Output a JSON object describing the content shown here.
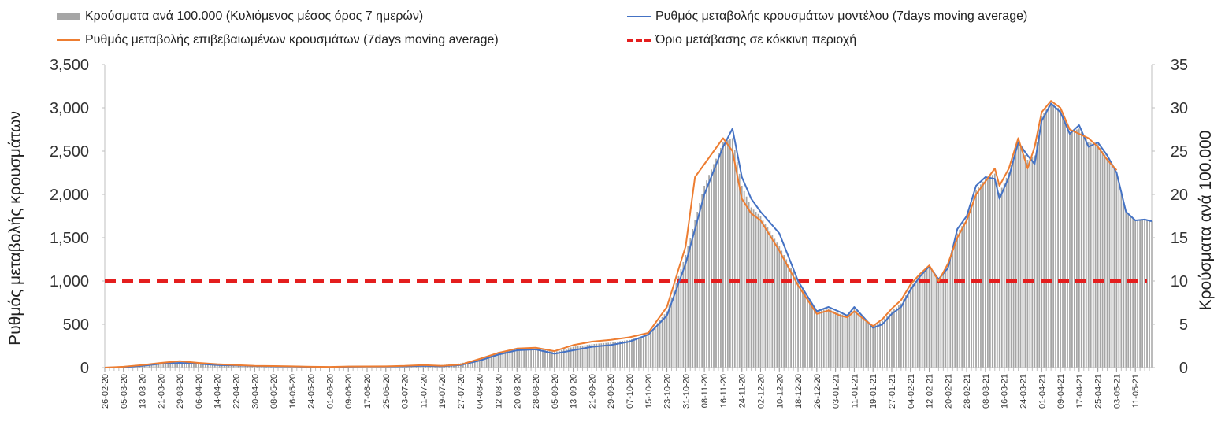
{
  "chart_data": {
    "type": "bar+line",
    "legend": {
      "bars": "Κρούσματα ανά 100.000 (Κυλιόμενος μέσος όρος 7 ημερών)",
      "model": "Ρυθμός μεταβολής κρουσμάτων μοντέλου (7days moving average)",
      "confirmed": "Ρυθμός μεταβολής επιβεβαιωμένων κρουσμάτων (7days moving average)",
      "threshold": "Όριο μετάβασης σε κόκκινη περιοχή"
    },
    "ylabel_left": "Ρυθμός μεταβολής κρουσμάτων",
    "ylabel_right": "Κρούσματα ανά 100.000",
    "ylim_left": [
      0,
      3500
    ],
    "ylim_right": [
      0,
      35
    ],
    "yticks_left": [
      "0",
      "500",
      "1,000",
      "1,500",
      "2,000",
      "2,500",
      "3,000",
      "3,500"
    ],
    "yticks_right": [
      "0",
      "5",
      "10",
      "15",
      "20",
      "25",
      "30",
      "35"
    ],
    "x_start": "26-02-20",
    "x_end": "18-05-21",
    "x_tick_labels": [
      "26-02-20",
      "05-03-20",
      "13-03-20",
      "21-03-20",
      "29-03-20",
      "06-04-20",
      "14-04-20",
      "22-04-20",
      "30-04-20",
      "08-05-20",
      "16-05-20",
      "24-05-20",
      "01-06-20",
      "09-06-20",
      "17-06-20",
      "25-06-20",
      "03-07-20",
      "11-07-20",
      "19-07-20",
      "27-07-20",
      "04-08-20",
      "12-08-20",
      "20-08-20",
      "28-08-20",
      "05-09-20",
      "13-09-20",
      "21-09-20",
      "29-09-20",
      "07-10-20",
      "15-10-20",
      "23-10-20",
      "31-10-20",
      "08-11-20",
      "16-11-20",
      "24-11-20",
      "02-12-20",
      "10-12-20",
      "18-12-20",
      "26-12-20",
      "03-01-21",
      "11-01-21",
      "19-01-21",
      "27-01-21",
      "04-02-21",
      "12-02-21",
      "20-02-21",
      "28-02-21",
      "08-03-21",
      "16-03-21",
      "24-03-21",
      "01-04-21",
      "09-04-21",
      "17-04-21",
      "25-04-21",
      "03-05-21",
      "11-05-21"
    ],
    "threshold_value": 1000,
    "series": [
      {
        "name": "Ρυθμός μεταβολής κρουσμάτων μοντέλου (7days moving average)",
        "axis": "left",
        "points": [
          [
            "26-02-20",
            0
          ],
          [
            "05-03-20",
            5
          ],
          [
            "13-03-20",
            20
          ],
          [
            "21-03-20",
            45
          ],
          [
            "29-03-20",
            55
          ],
          [
            "06-04-20",
            45
          ],
          [
            "14-04-20",
            30
          ],
          [
            "22-04-20",
            25
          ],
          [
            "30-04-20",
            18
          ],
          [
            "08-05-20",
            15
          ],
          [
            "16-05-20",
            12
          ],
          [
            "24-05-20",
            8
          ],
          [
            "01-06-20",
            5
          ],
          [
            "09-06-20",
            10
          ],
          [
            "17-06-20",
            12
          ],
          [
            "25-06-20",
            12
          ],
          [
            "03-07-20",
            15
          ],
          [
            "11-07-20",
            20
          ],
          [
            "19-07-20",
            15
          ],
          [
            "27-07-20",
            30
          ],
          [
            "04-08-20",
            80
          ],
          [
            "12-08-20",
            150
          ],
          [
            "20-08-20",
            200
          ],
          [
            "28-08-20",
            210
          ],
          [
            "05-09-20",
            160
          ],
          [
            "13-09-20",
            200
          ],
          [
            "21-09-20",
            240
          ],
          [
            "29-09-20",
            260
          ],
          [
            "07-10-20",
            300
          ],
          [
            "15-10-20",
            380
          ],
          [
            "23-10-20",
            600
          ],
          [
            "31-10-20",
            1200
          ],
          [
            "08-11-20",
            2000
          ],
          [
            "16-11-20",
            2550
          ],
          [
            "20-11-20",
            2760
          ],
          [
            "24-11-20",
            2200
          ],
          [
            "28-11-20",
            1950
          ],
          [
            "02-12-20",
            1800
          ],
          [
            "10-12-20",
            1550
          ],
          [
            "18-12-20",
            1000
          ],
          [
            "26-12-20",
            650
          ],
          [
            "31-12-20",
            700
          ],
          [
            "05-01-21",
            640
          ],
          [
            "08-01-21",
            600
          ],
          [
            "11-01-21",
            700
          ],
          [
            "15-01-21",
            580
          ],
          [
            "19-01-21",
            460
          ],
          [
            "23-01-21",
            500
          ],
          [
            "27-01-21",
            620
          ],
          [
            "31-01-21",
            700
          ],
          [
            "04-02-21",
            900
          ],
          [
            "08-02-21",
            1050
          ],
          [
            "12-02-21",
            1170
          ],
          [
            "16-02-21",
            1020
          ],
          [
            "20-02-21",
            1150
          ],
          [
            "24-02-21",
            1600
          ],
          [
            "28-02-21",
            1750
          ],
          [
            "04-03-21",
            2100
          ],
          [
            "08-03-21",
            2200
          ],
          [
            "12-03-21",
            2180
          ],
          [
            "14-03-21",
            1950
          ],
          [
            "18-03-21",
            2200
          ],
          [
            "22-03-21",
            2600
          ],
          [
            "26-03-21",
            2450
          ],
          [
            "29-03-21",
            2350
          ],
          [
            "01-04-21",
            2850
          ],
          [
            "05-04-21",
            3050
          ],
          [
            "09-04-21",
            2950
          ],
          [
            "13-04-21",
            2700
          ],
          [
            "17-04-21",
            2800
          ],
          [
            "21-04-21",
            2550
          ],
          [
            "25-04-21",
            2600
          ],
          [
            "29-04-21",
            2450
          ],
          [
            "03-05-21",
            2250
          ],
          [
            "07-05-21",
            1800
          ],
          [
            "11-05-21",
            1700
          ],
          [
            "15-05-21",
            1710
          ],
          [
            "18-05-21",
            1690
          ]
        ]
      },
      {
        "name": "Ρυθμός μεταβολής επιβεβαιωμένων κρουσμάτων (7days moving average)",
        "axis": "left",
        "points": [
          [
            "26-02-20",
            0
          ],
          [
            "05-03-20",
            10
          ],
          [
            "13-03-20",
            30
          ],
          [
            "21-03-20",
            55
          ],
          [
            "29-03-20",
            75
          ],
          [
            "06-04-20",
            55
          ],
          [
            "14-04-20",
            40
          ],
          [
            "22-04-20",
            30
          ],
          [
            "30-04-20",
            20
          ],
          [
            "08-05-20",
            18
          ],
          [
            "16-05-20",
            15
          ],
          [
            "24-05-20",
            10
          ],
          [
            "01-06-20",
            8
          ],
          [
            "09-06-20",
            12
          ],
          [
            "17-06-20",
            14
          ],
          [
            "25-06-20",
            15
          ],
          [
            "03-07-20",
            20
          ],
          [
            "11-07-20",
            30
          ],
          [
            "19-07-20",
            20
          ],
          [
            "27-07-20",
            35
          ],
          [
            "04-08-20",
            100
          ],
          [
            "12-08-20",
            170
          ],
          [
            "20-08-20",
            220
          ],
          [
            "28-08-20",
            230
          ],
          [
            "05-09-20",
            190
          ],
          [
            "13-09-20",
            260
          ],
          [
            "21-09-20",
            300
          ],
          [
            "29-09-20",
            320
          ],
          [
            "07-10-20",
            350
          ],
          [
            "15-10-20",
            400
          ],
          [
            "23-10-20",
            700
          ],
          [
            "31-10-20",
            1400
          ],
          [
            "04-11-20",
            2200
          ],
          [
            "08-11-20",
            2350
          ],
          [
            "16-11-20",
            2650
          ],
          [
            "20-11-20",
            2500
          ],
          [
            "24-11-20",
            1950
          ],
          [
            "28-11-20",
            1780
          ],
          [
            "02-12-20",
            1700
          ],
          [
            "10-12-20",
            1350
          ],
          [
            "18-12-20",
            950
          ],
          [
            "26-12-20",
            620
          ],
          [
            "31-12-20",
            660
          ],
          [
            "05-01-21",
            600
          ],
          [
            "08-01-21",
            580
          ],
          [
            "11-01-21",
            650
          ],
          [
            "15-01-21",
            560
          ],
          [
            "19-01-21",
            480
          ],
          [
            "23-01-21",
            560
          ],
          [
            "27-01-21",
            680
          ],
          [
            "31-01-21",
            780
          ],
          [
            "04-02-21",
            960
          ],
          [
            "08-02-21",
            1080
          ],
          [
            "12-02-21",
            1180
          ],
          [
            "16-02-21",
            1000
          ],
          [
            "20-02-21",
            1200
          ],
          [
            "24-02-21",
            1500
          ],
          [
            "28-02-21",
            1700
          ],
          [
            "04-03-21",
            2000
          ],
          [
            "08-03-21",
            2150
          ],
          [
            "12-03-21",
            2300
          ],
          [
            "14-03-21",
            2100
          ],
          [
            "18-03-21",
            2300
          ],
          [
            "22-03-21",
            2650
          ],
          [
            "26-03-21",
            2300
          ],
          [
            "29-03-21",
            2550
          ],
          [
            "01-04-21",
            2950
          ],
          [
            "05-04-21",
            3080
          ],
          [
            "09-04-21",
            3000
          ],
          [
            "13-04-21",
            2750
          ],
          [
            "17-04-21",
            2700
          ],
          [
            "21-04-21",
            2650
          ],
          [
            "25-04-21",
            2550
          ],
          [
            "29-04-21",
            2400
          ],
          [
            "03-05-21",
            2280
          ]
        ]
      },
      {
        "name": "Κρούσματα ανά 100.000 (Κυλιόμενος μέσος όρος 7 ημερών)",
        "axis": "right",
        "type": "bar",
        "points": [
          [
            "26-02-20",
            0
          ],
          [
            "05-03-20",
            0.1
          ],
          [
            "13-03-20",
            0.3
          ],
          [
            "21-03-20",
            0.5
          ],
          [
            "29-03-20",
            0.6
          ],
          [
            "06-04-20",
            0.5
          ],
          [
            "14-04-20",
            0.3
          ],
          [
            "22-04-20",
            0.3
          ],
          [
            "30-04-20",
            0.2
          ],
          [
            "08-05-20",
            0.15
          ],
          [
            "16-05-20",
            0.1
          ],
          [
            "24-05-20",
            0.1
          ],
          [
            "01-06-20",
            0.1
          ],
          [
            "09-06-20",
            0.15
          ],
          [
            "17-06-20",
            0.2
          ],
          [
            "25-06-20",
            0.2
          ],
          [
            "03-07-20",
            0.25
          ],
          [
            "11-07-20",
            0.3
          ],
          [
            "19-07-20",
            0.3
          ],
          [
            "27-07-20",
            0.5
          ],
          [
            "04-08-20",
            1
          ],
          [
            "12-08-20",
            1.8
          ],
          [
            "20-08-20",
            2.1
          ],
          [
            "28-08-20",
            2.2
          ],
          [
            "05-09-20",
            1.8
          ],
          [
            "13-09-20",
            2.4
          ],
          [
            "21-09-20",
            2.7
          ],
          [
            "29-09-20",
            2.9
          ],
          [
            "07-10-20",
            3.2
          ],
          [
            "15-10-20",
            3.8
          ],
          [
            "23-10-20",
            6.5
          ],
          [
            "31-10-20",
            13
          ],
          [
            "08-11-20",
            21
          ],
          [
            "16-11-20",
            26
          ],
          [
            "20-11-20",
            26.5
          ],
          [
            "24-11-20",
            21
          ],
          [
            "28-11-20",
            18.5
          ],
          [
            "02-12-20",
            17.5
          ],
          [
            "10-12-20",
            14
          ],
          [
            "18-12-20",
            10
          ],
          [
            "26-12-20",
            6.5
          ],
          [
            "31-12-20",
            6.8
          ],
          [
            "05-01-21",
            6.2
          ],
          [
            "08-01-21",
            6
          ],
          [
            "11-01-21",
            6.8
          ],
          [
            "15-01-21",
            5.8
          ],
          [
            "19-01-21",
            4.8
          ],
          [
            "23-01-21",
            5.4
          ],
          [
            "27-01-21",
            6.5
          ],
          [
            "31-01-21",
            7.4
          ],
          [
            "04-02-21",
            9.3
          ],
          [
            "08-02-21",
            10.7
          ],
          [
            "12-02-21",
            11.8
          ],
          [
            "16-02-21",
            10.2
          ],
          [
            "20-02-21",
            11.8
          ],
          [
            "24-02-21",
            15.5
          ],
          [
            "28-02-21",
            17.2
          ],
          [
            "04-03-21",
            20.5
          ],
          [
            "08-03-21",
            21.8
          ],
          [
            "12-03-21",
            22.4
          ],
          [
            "14-03-21",
            20.2
          ],
          [
            "18-03-21",
            22.5
          ],
          [
            "22-03-21",
            26.2
          ],
          [
            "26-03-21",
            24
          ],
          [
            "29-03-21",
            24.5
          ],
          [
            "01-04-21",
            29
          ],
          [
            "05-04-21",
            30.6
          ],
          [
            "09-04-21",
            29.8
          ],
          [
            "13-04-21",
            27.2
          ],
          [
            "17-04-21",
            27.6
          ],
          [
            "21-04-21",
            26
          ],
          [
            "25-04-21",
            25.8
          ],
          [
            "29-04-21",
            24.2
          ],
          [
            "03-05-21",
            22.6
          ],
          [
            "07-05-21",
            18
          ],
          [
            "11-05-21",
            17
          ],
          [
            "15-05-21",
            17.1
          ],
          [
            "18-05-21",
            16.9
          ]
        ]
      }
    ],
    "colors": {
      "bars": "#a6a6a6",
      "model": "#4472c4",
      "confirmed": "#ed7d31",
      "threshold": "#e41e1e"
    }
  }
}
